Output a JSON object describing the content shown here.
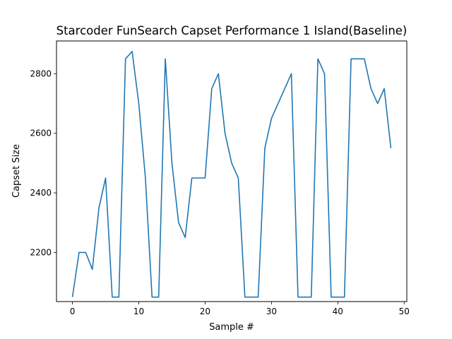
{
  "chart_data": {
    "type": "line",
    "title": "Starcoder FunSearch Capset Performance 1 Island(Baseline)",
    "xlabel": "Sample #",
    "ylabel": "Capset Size",
    "xlim": [
      -2.4,
      50.4
    ],
    "ylim": [
      2035,
      2910
    ],
    "xticks": [
      0,
      10,
      20,
      30,
      40,
      50
    ],
    "yticks": [
      2200,
      2400,
      2600,
      2800
    ],
    "grid": false,
    "legend": "none",
    "series": [
      {
        "color": "#1f77b4",
        "x": [
          0,
          1,
          2,
          3,
          4,
          5,
          6,
          7,
          8,
          9,
          10,
          11,
          12,
          13,
          14,
          15,
          16,
          17,
          18,
          19,
          20,
          21,
          22,
          23,
          24,
          25,
          26,
          27,
          28,
          29,
          30,
          31,
          32,
          33,
          34,
          35,
          36,
          37,
          38,
          39,
          40,
          41,
          42,
          43,
          44,
          45,
          46,
          47,
          48
        ],
        "values": [
          2050,
          2200,
          2200,
          2143,
          2350,
          2450,
          2050,
          2050,
          2850,
          2875,
          2700,
          2450,
          2050,
          2050,
          2850,
          2500,
          2300,
          2250,
          2450,
          2450,
          2450,
          2750,
          2800,
          2600,
          2500,
          2450,
          2050,
          2050,
          2050,
          2550,
          2650,
          2700,
          2750,
          2800,
          2050,
          2050,
          2050,
          2850,
          2800,
          2050,
          2050,
          2050,
          2850,
          2850,
          2850,
          2750,
          2700,
          2750,
          2550
        ]
      }
    ]
  }
}
